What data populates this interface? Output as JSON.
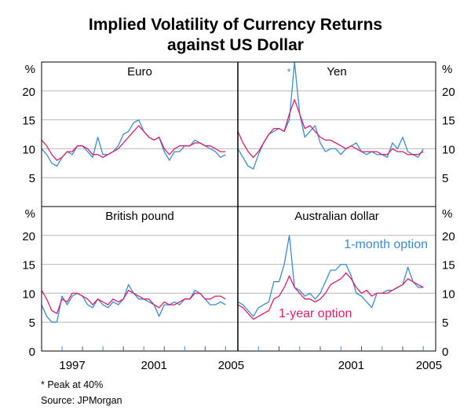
{
  "chart_data": {
    "type": "line",
    "title": "Implied Volatility of Currency Returns against US Dollar",
    "title_lines": [
      "Implied Volatility of Currency Returns",
      "against US Dollar"
    ],
    "yunit": "%",
    "ylim": [
      0,
      25
    ],
    "yticks": [
      0,
      5,
      10,
      15,
      20
    ],
    "xlim": [
      1996,
      2005.6
    ],
    "xtick_labels": [
      "1997",
      "2001",
      "2005"
    ],
    "grid": true,
    "colors": {
      "one_month": "#3b8bd0",
      "one_year": "#d81f6b"
    },
    "annotations": {
      "month_label": "1-month option",
      "year_label": "1-year option",
      "peak_marker": "*"
    },
    "footnote": "*  Peak at 40%",
    "source": "Source: JPMorgan",
    "x": [
      1996,
      1996.25,
      1996.5,
      1996.75,
      1997,
      1997.25,
      1997.5,
      1997.75,
      1998,
      1998.25,
      1998.5,
      1998.75,
      1999,
      1999.25,
      1999.5,
      1999.75,
      2000,
      2000.25,
      2000.5,
      2000.75,
      2001,
      2001.25,
      2001.5,
      2001.75,
      2002,
      2002.25,
      2002.5,
      2002.75,
      2003,
      2003.25,
      2003.5,
      2003.75,
      2004,
      2004.25,
      2004.5,
      2004.75,
      2005
    ],
    "panels": [
      {
        "name": "Euro",
        "series": [
          {
            "name": "1-month option",
            "values": [
              10,
              9,
              7.5,
              7,
              8.5,
              9.5,
              9,
              10.5,
              10.5,
              9.5,
              8.5,
              12,
              9,
              9,
              9.5,
              10.5,
              12.5,
              13,
              14.5,
              15,
              13,
              12,
              11.5,
              12,
              9.5,
              8,
              9.5,
              9.5,
              10.5,
              10.5,
              11.5,
              11,
              10.5,
              10,
              9.5,
              8.5,
              9
            ]
          },
          {
            "name": "1-year option",
            "values": [
              11.5,
              10.5,
              9,
              8,
              8.5,
              9.5,
              9.5,
              10.5,
              10.5,
              10,
              9,
              9,
              8.5,
              9,
              9.5,
              10,
              11,
              12,
              13,
              14,
              13,
              12,
              11.5,
              12,
              10,
              9,
              10,
              10.5,
              10.5,
              10.5,
              11,
              11,
              10.5,
              10.5,
              10,
              9.5,
              9.5
            ]
          }
        ]
      },
      {
        "name": "Yen",
        "series": [
          {
            "name": "1-month option",
            "values": [
              10,
              8.5,
              7,
              6.5,
              9,
              11,
              12.5,
              13,
              13.5,
              13,
              15,
              40,
              16,
              12,
              13,
              14,
              11,
              9.5,
              10,
              10,
              9,
              10,
              10.5,
              11,
              9.5,
              9,
              9.5,
              9,
              9,
              8.5,
              11,
              10,
              12,
              9.5,
              9,
              8.5,
              10
            ]
          },
          {
            "name": "1-year option",
            "values": [
              13,
              11,
              9.5,
              8.5,
              9.5,
              11,
              12.5,
              13.5,
              13.5,
              13,
              16,
              18.5,
              16,
              13.5,
              14,
              13,
              12,
              11.5,
              11.5,
              11,
              10.5,
              10,
              10.5,
              10,
              9.5,
              9.5,
              9.5,
              9.5,
              9,
              9,
              10,
              9.5,
              9.5,
              9,
              9,
              9,
              9.5
            ]
          }
        ]
      },
      {
        "name": "British pound",
        "series": [
          {
            "name": "1-month option",
            "values": [
              8,
              6,
              5,
              5,
              9.5,
              8,
              9.5,
              10,
              9.5,
              8,
              7.5,
              9,
              8,
              7.5,
              8.5,
              8,
              9,
              11.5,
              10,
              9,
              9,
              8.5,
              8,
              6,
              8,
              8,
              8.5,
              8,
              9,
              9,
              10.5,
              10,
              9,
              8,
              8,
              8.5,
              8
            ]
          },
          {
            "name": "1-year option",
            "values": [
              10.5,
              9,
              7,
              6.5,
              9,
              8.5,
              10,
              10,
              9.5,
              9,
              8,
              9,
              8.5,
              8,
              9,
              8.5,
              9,
              10.5,
              10,
              9.5,
              9,
              9,
              8,
              7.5,
              8.5,
              8,
              8,
              8.5,
              9,
              9,
              10,
              10,
              9,
              9,
              9.5,
              9.5,
              9
            ]
          }
        ]
      },
      {
        "name": "Australian dollar",
        "series": [
          {
            "name": "1-month option",
            "values": [
              8.5,
              8,
              7,
              6,
              7.5,
              8,
              8.5,
              12,
              12,
              15,
              20,
              11,
              10.5,
              9.5,
              10,
              9,
              10,
              12,
              14,
              14,
              15,
              15,
              13,
              10,
              9.5,
              8.5,
              7.5,
              10,
              10,
              10.5,
              10.5,
              11,
              11.5,
              14.5,
              12,
              11,
              11
            ]
          },
          {
            "name": "1-year option",
            "values": [
              8,
              7.5,
              6.5,
              5.5,
              6,
              6.5,
              7,
              9,
              9.5,
              11,
              13,
              11,
              10,
              9,
              9,
              8.5,
              9,
              10,
              11.5,
              12,
              12.5,
              13.5,
              12.5,
              11,
              10,
              10.5,
              9.5,
              10,
              10,
              10,
              10.5,
              11,
              11.5,
              12.5,
              12,
              11.5,
              11
            ]
          }
        ]
      }
    ]
  }
}
